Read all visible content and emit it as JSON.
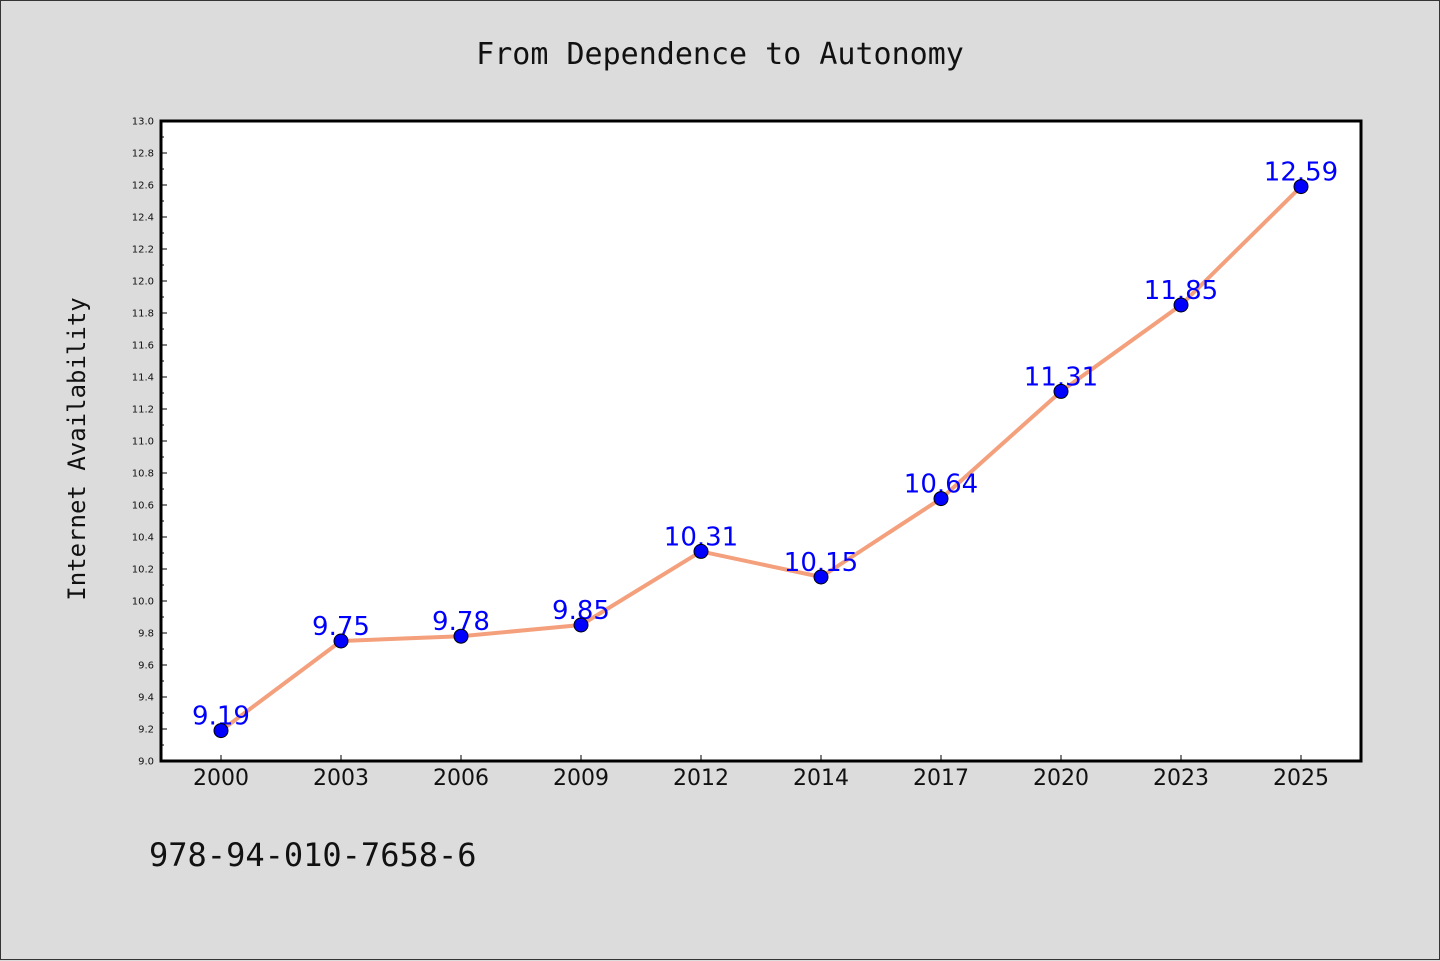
{
  "chart_data": {
    "type": "line",
    "title": "From Dependence to Autonomy",
    "xlabel": "",
    "ylabel": "Internet Availability",
    "categories": [
      "2000",
      "2003",
      "2006",
      "2009",
      "2012",
      "2014",
      "2017",
      "2020",
      "2023",
      "2025"
    ],
    "series": [
      {
        "values": [
          9.19,
          9.75,
          9.78,
          9.85,
          10.31,
          10.15,
          10.64,
          11.31,
          11.85,
          12.59
        ],
        "data_labels": [
          "9.19",
          "9.75",
          "9.78",
          "9.85",
          "10.31",
          "10.15",
          "10.64",
          "11.31",
          "11.85",
          "12.59"
        ],
        "line_color": "#f4a07c",
        "marker_color": "#0000ff"
      }
    ],
    "ylim": [
      9.0,
      13.0
    ],
    "yticks": [
      "9.0",
      "9.2",
      "9.4",
      "9.6",
      "9.8",
      "10.0",
      "10.2",
      "10.4",
      "10.6",
      "10.8",
      "11.0",
      "11.2",
      "11.4",
      "11.6",
      "11.8",
      "12.0",
      "12.2",
      "12.4",
      "12.6",
      "12.8",
      "13.0"
    ],
    "grid": false,
    "legend": "none"
  },
  "annotation": "978-94-010-7658-6",
  "colors": {
    "background": "#dcdcdc",
    "plot_background": "#ffffff",
    "line": "#f4a07c",
    "marker": "#0000ff",
    "data_label": "#0000ff"
  }
}
